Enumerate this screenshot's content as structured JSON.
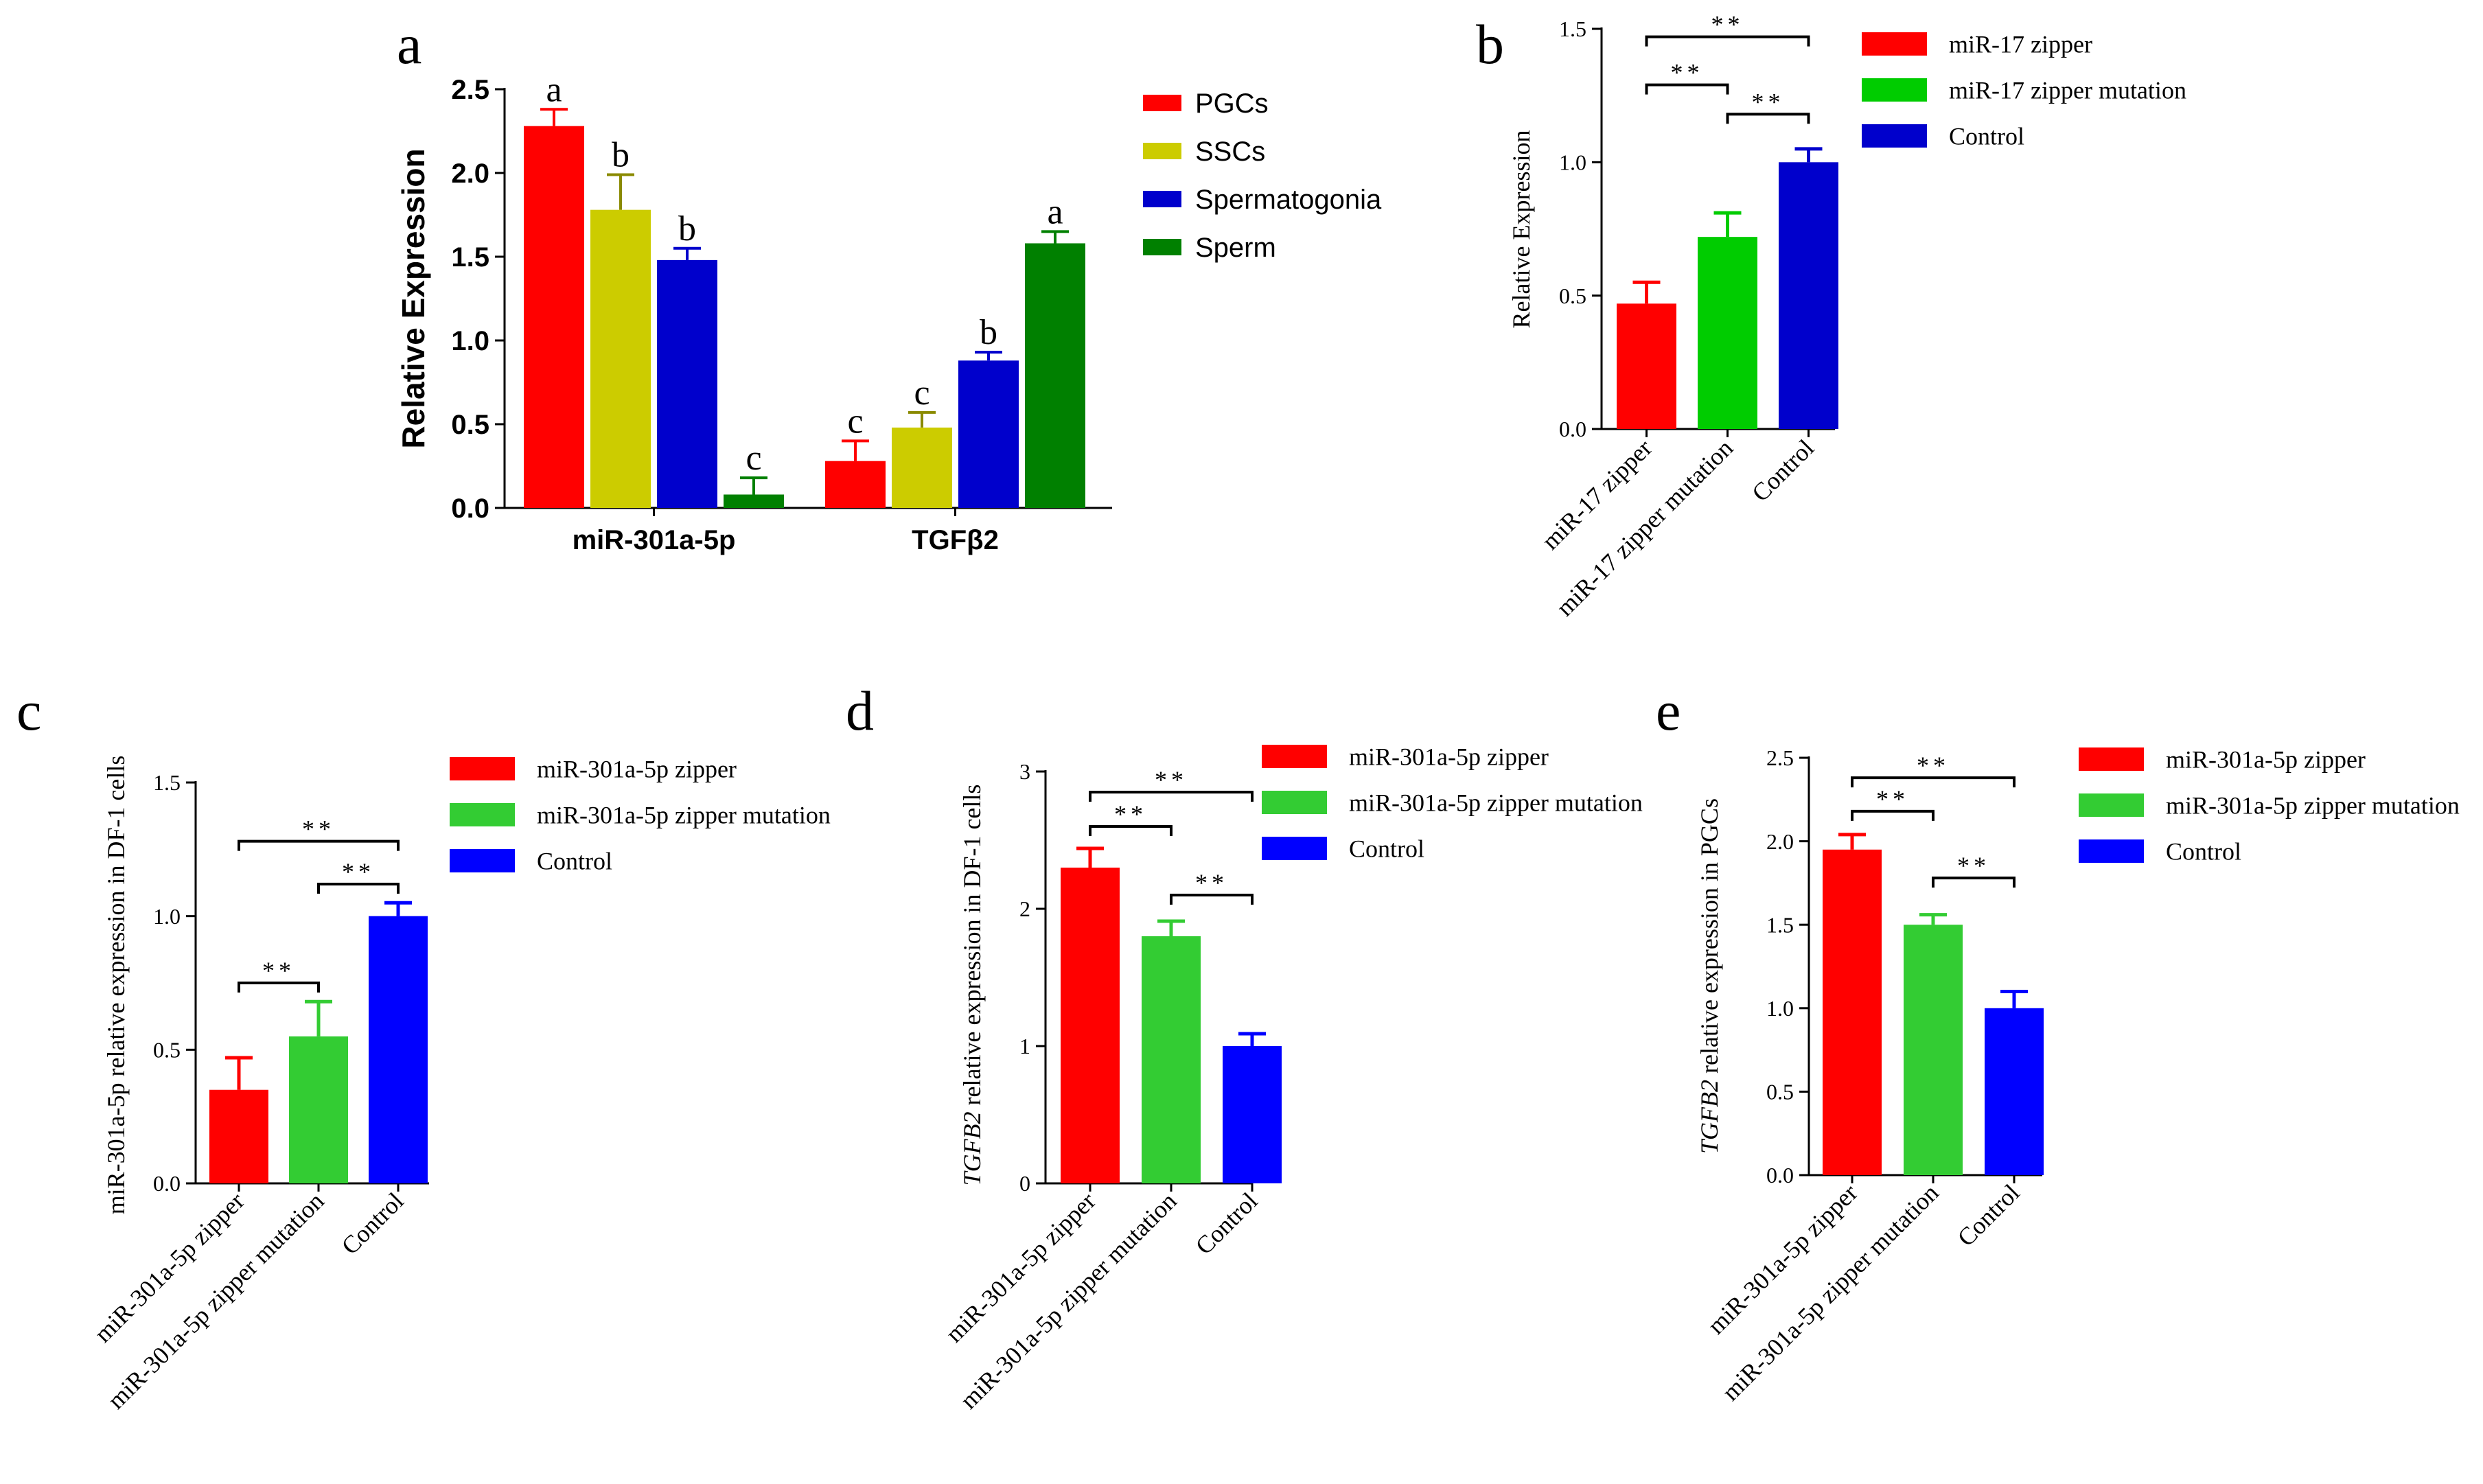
{
  "chart_data": [
    {
      "type": "bar",
      "panel_label": "a",
      "font": "sans",
      "ylabel": "Relative Expression",
      "ylim": [
        0,
        2.5
      ],
      "yticks": [
        "0.0",
        "0.5",
        "1.0",
        "1.5",
        "2.0",
        "2.5"
      ],
      "categories": [
        "miR-301a-5p",
        "TGFβ2"
      ],
      "series": [
        {
          "name": "PGCs",
          "color": "#ff0000",
          "values": [
            2.28,
            0.28
          ],
          "errors": [
            0.1,
            0.12
          ],
          "letters": [
            "a",
            "c"
          ]
        },
        {
          "name": "SSCs",
          "color": "#cccc00",
          "values": [
            1.78,
            0.48
          ],
          "errors": [
            0.21,
            0.09
          ],
          "letters": [
            "b",
            "c"
          ]
        },
        {
          "name": "Spermatogonia",
          "color": "#0000cc",
          "values": [
            1.48,
            0.88
          ],
          "errors": [
            0.07,
            0.05
          ],
          "letters": [
            "b",
            "b"
          ]
        },
        {
          "name": "Sperm",
          "color": "#008000",
          "values": [
            0.08,
            1.58
          ],
          "errors": [
            0.1,
            0.07
          ],
          "letters": [
            "c",
            "a"
          ]
        }
      ]
    },
    {
      "type": "bar",
      "panel_label": "b",
      "font": "serif",
      "ylabel": "Relative Expression",
      "ylim": [
        0,
        1.5
      ],
      "yticks": [
        "0.0",
        "0.5",
        "1.0",
        "1.5"
      ],
      "categories": [
        "miR-17 zipper",
        "miR-17 zipper mutation",
        "Control"
      ],
      "values": [
        0.47,
        0.72,
        1.0
      ],
      "errors": [
        0.08,
        0.09,
        0.05
      ],
      "colors": [
        "#ff0000",
        "#00cc00",
        "#0000cc"
      ],
      "legend": [
        "miR-17 zipper",
        "miR-17 zipper mutation",
        "Control"
      ],
      "significance": [
        {
          "from": 0,
          "to": 1,
          "label": "**",
          "level": 1.29
        },
        {
          "from": 1,
          "to": 2,
          "label": "**",
          "level": 1.18
        },
        {
          "from": 0,
          "to": 2,
          "label": "**",
          "level": 1.47
        }
      ]
    },
    {
      "type": "bar",
      "panel_label": "c",
      "font": "serif",
      "ylabel": "miR-301a-5p relative expression in DF-1 cells",
      "ylim": [
        0,
        1.5
      ],
      "yticks": [
        "0.0",
        "0.5",
        "1.0",
        "1.5"
      ],
      "categories": [
        "miR-301a-5p zipper",
        "miR-301a-5p zipper mutation",
        "Control"
      ],
      "values": [
        0.35,
        0.55,
        1.0
      ],
      "errors": [
        0.12,
        0.13,
        0.05
      ],
      "colors": [
        "#ff0000",
        "#33cc33",
        "#0000ff"
      ],
      "legend": [
        "miR-301a-5p zipper",
        "miR-301a-5p zipper mutation",
        "Control"
      ],
      "significance": [
        {
          "from": 0,
          "to": 1,
          "label": "**",
          "level": 0.75
        },
        {
          "from": 1,
          "to": 2,
          "label": "**",
          "level": 1.12
        },
        {
          "from": 0,
          "to": 2,
          "label": "**",
          "level": 1.28
        }
      ]
    },
    {
      "type": "bar",
      "panel_label": "d",
      "font": "serif",
      "ylabel_italic": "TGFB2",
      "ylabel": " relative expression in DF-1 cells",
      "ylim": [
        0,
        3
      ],
      "yticks": [
        "0",
        "1",
        "2",
        "3"
      ],
      "categories": [
        "miR-301a-5p zipper",
        "miR-301a-5p zipper mutation",
        "Control"
      ],
      "values": [
        2.3,
        1.8,
        1.0
      ],
      "errors": [
        0.14,
        0.11,
        0.09
      ],
      "colors": [
        "#ff0000",
        "#33cc33",
        "#0000ff"
      ],
      "legend": [
        "miR-301a-5p zipper",
        "miR-301a-5p zipper mutation",
        "Control"
      ],
      "significance": [
        {
          "from": 0,
          "to": 1,
          "label": "**",
          "level": 2.6
        },
        {
          "from": 1,
          "to": 2,
          "label": "**",
          "level": 2.1
        },
        {
          "from": 0,
          "to": 2,
          "label": "**",
          "level": 2.85
        }
      ]
    },
    {
      "type": "bar",
      "panel_label": "e",
      "font": "serif",
      "ylabel_italic": "TGFB2",
      "ylabel": " relative expression in PGCs",
      "ylim": [
        0,
        2.5
      ],
      "yticks": [
        "0.0",
        "0.5",
        "1.0",
        "1.5",
        "2.0",
        "2.5"
      ],
      "categories": [
        "miR-301a-5p zipper",
        "miR-301a-5p zipper mutation",
        "Control"
      ],
      "values": [
        1.95,
        1.5,
        1.0
      ],
      "errors": [
        0.09,
        0.06,
        0.1
      ],
      "colors": [
        "#ff0000",
        "#33cc33",
        "#0000ff"
      ],
      "legend": [
        "miR-301a-5p zipper",
        "miR-301a-5p zipper mutation",
        "Control"
      ],
      "significance": [
        {
          "from": 0,
          "to": 1,
          "label": "**",
          "level": 2.18
        },
        {
          "from": 1,
          "to": 2,
          "label": "**",
          "level": 1.78
        },
        {
          "from": 0,
          "to": 2,
          "label": "**",
          "level": 2.38
        }
      ]
    }
  ]
}
